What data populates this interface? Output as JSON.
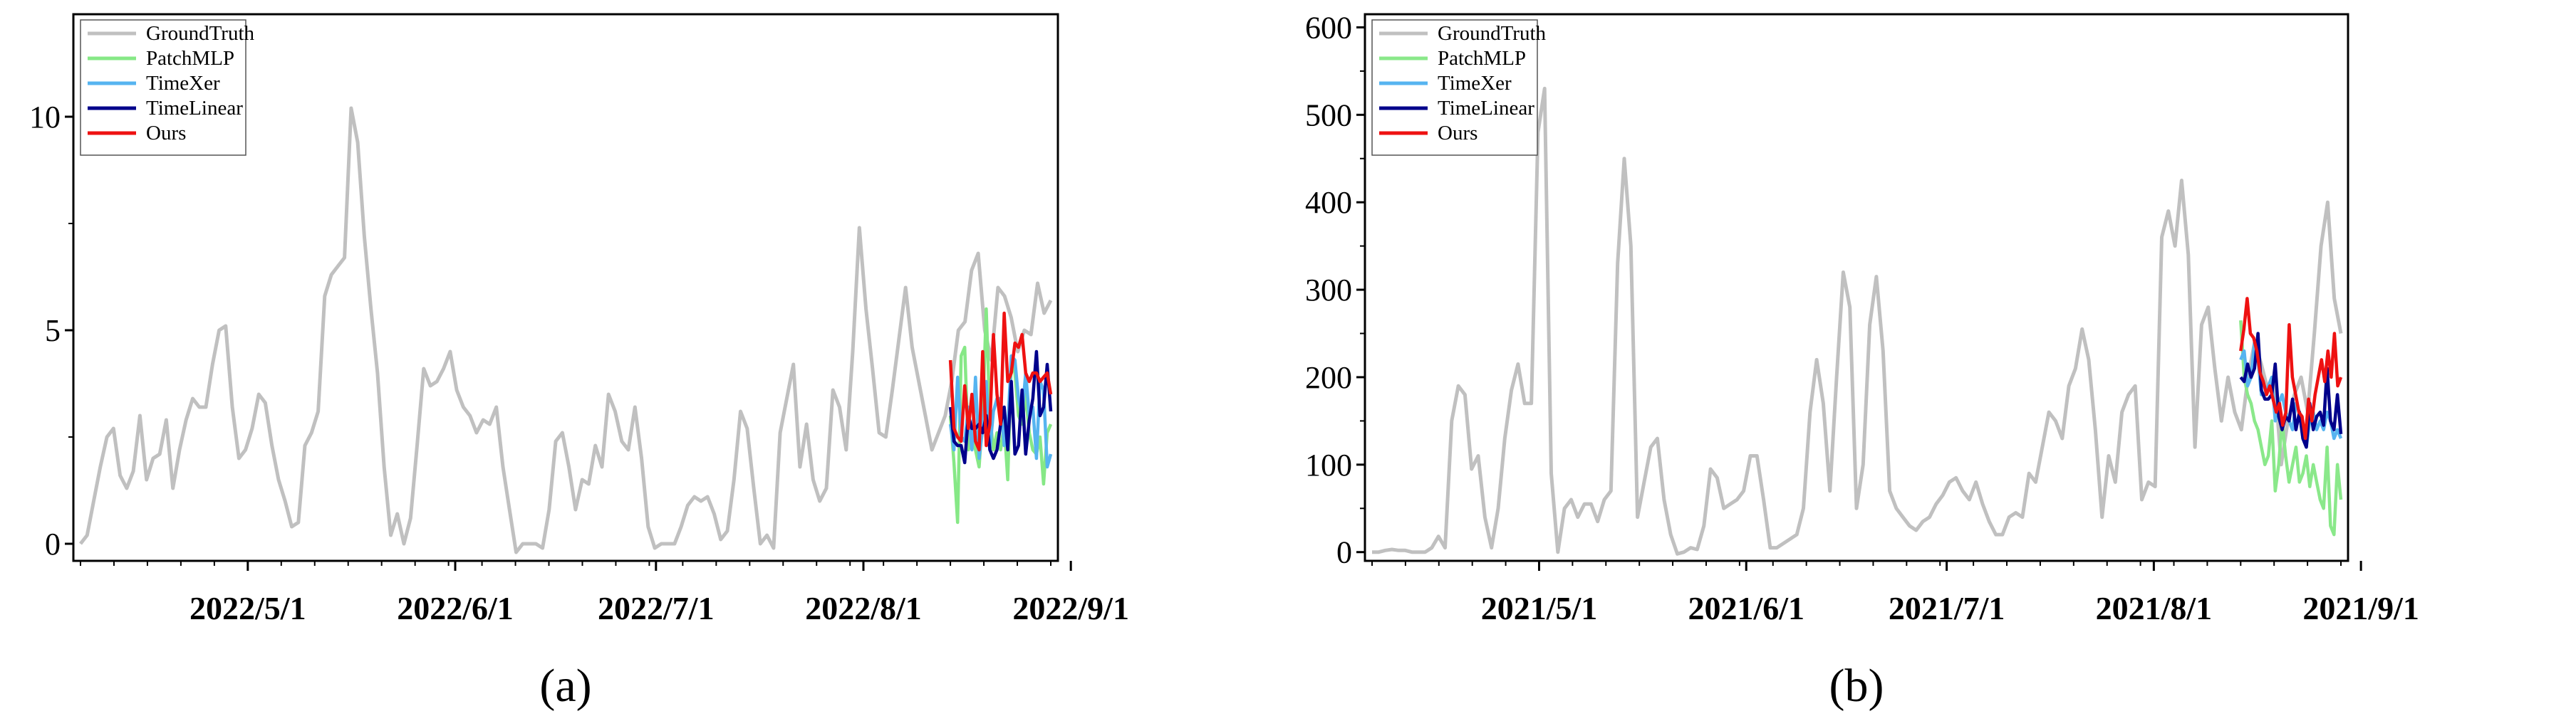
{
  "chart_data": [
    {
      "panel": "(a)",
      "type": "line",
      "ylim": [
        -0.4,
        12.4
      ],
      "yticks": [
        0,
        5,
        10
      ],
      "xticks": [
        "2022/5/1",
        "2022/6/1",
        "2022/7/1",
        "2022/8/1",
        "2022/9/1"
      ],
      "x_start": "2022/4/6",
      "forecast_start": "2022/8/14",
      "legend": {
        "position": "top-left",
        "entries": [
          "GroundTruth",
          "PatchMLP",
          "TimeXer",
          "TimeLinear",
          "Ours"
        ]
      },
      "series": [
        {
          "name": "GroundTruth",
          "color": "#c0c0c0",
          "values": [
            0,
            0.2,
            1.0,
            1.8,
            2.5,
            2.7,
            1.6,
            1.3,
            1.7,
            3.0,
            1.5,
            2.0,
            2.1,
            2.9,
            1.3,
            2.2,
            2.9,
            3.4,
            3.2,
            3.2,
            4.2,
            5.0,
            5.1,
            3.2,
            2.0,
            2.2,
            2.7,
            3.5,
            3.3,
            2.3,
            1.5,
            1.0,
            0.4,
            0.5,
            2.3,
            2.6,
            3.1,
            5.8,
            6.3,
            6.5,
            6.7,
            10.2,
            9.4,
            7.2,
            5.5,
            4.0,
            1.8,
            0.2,
            0.7,
            0.0,
            0.6,
            2.3,
            4.1,
            3.7,
            3.8,
            4.1,
            4.5,
            3.6,
            3.2,
            3.0,
            2.6,
            2.9,
            2.8,
            3.2,
            1.8,
            0.8,
            -0.2,
            0.0,
            0.0,
            0.0,
            -0.1,
            0.8,
            2.4,
            2.6,
            1.8,
            0.8,
            1.5,
            1.4,
            2.3,
            1.8,
            3.5,
            3.1,
            2.4,
            2.2,
            3.2,
            2.0,
            0.4,
            -0.1,
            0.0,
            0.0,
            0.0,
            0.4,
            0.9,
            1.1,
            1.0,
            1.1,
            0.7,
            0.1,
            0.3,
            1.5,
            3.1,
            2.7,
            1.3,
            0.0,
            0.2,
            -0.1,
            2.6,
            3.4,
            4.2,
            1.8,
            2.8,
            1.5,
            1.0,
            1.3,
            3.6,
            3.2,
            2.2,
            4.5,
            7.4,
            5.5,
            4.1,
            2.6,
            2.5,
            3.6,
            4.8,
            6.0,
            4.6,
            3.8,
            3.0,
            2.2,
            2.6,
            3.0,
            3.8,
            5.0,
            5.2,
            6.4,
            6.8,
            5.0,
            4.3,
            6.0,
            5.8,
            5.3,
            4.5,
            5.0,
            4.9,
            6.1,
            5.4,
            5.7
          ]
        },
        {
          "name": "PatchMLP",
          "color": "#86e886",
          "values": [
            3.0,
            1.9,
            0.5,
            4.4,
            4.6,
            2.2,
            2.5,
            2.2,
            1.8,
            3.0,
            5.5,
            3.0,
            2.2,
            2.6,
            2.2,
            2.8,
            1.5,
            4.3,
            4.0,
            3.0,
            2.8,
            3.5,
            2.6,
            2.2,
            2.1,
            2.5,
            1.4,
            2.6,
            2.8
          ]
        },
        {
          "name": "TimeXer",
          "color": "#56b4f0",
          "values": [
            2.8,
            2.2,
            3.9,
            2.5,
            2.4,
            3.2,
            2.2,
            3.9,
            2.0,
            2.7,
            3.8,
            2.2,
            3.1,
            3.4,
            3.4,
            2.3,
            2.7,
            4.4,
            4.3,
            3.4,
            3.0,
            4.0,
            3.0,
            3.2,
            2.0,
            3.8,
            3.6,
            1.8,
            2.1
          ]
        },
        {
          "name": "TimeLinear",
          "color": "#00008b",
          "values": [
            3.2,
            2.4,
            2.3,
            2.3,
            1.9,
            3.0,
            2.7,
            2.7,
            2.8,
            2.6,
            3.0,
            2.2,
            2.0,
            2.2,
            2.8,
            3.2,
            2.2,
            3.8,
            2.1,
            2.3,
            3.6,
            2.1,
            2.9,
            3.4,
            4.5,
            3.0,
            3.2,
            4.2,
            3.1
          ]
        },
        {
          "name": "Ours",
          "color": "#ee1111",
          "values": [
            4.3,
            2.7,
            2.5,
            2.4,
            3.7,
            2.7,
            3.5,
            2.4,
            2.2,
            4.5,
            2.3,
            2.8,
            4.9,
            3.5,
            2.8,
            5.4,
            3.8,
            4.0,
            4.7,
            4.6,
            4.9,
            4.0,
            3.8,
            4.0,
            4.0,
            3.8,
            3.9,
            4.0,
            3.5
          ]
        }
      ]
    },
    {
      "panel": "(b)",
      "type": "line",
      "ylim": [
        -10,
        615
      ],
      "yticks": [
        0,
        100,
        200,
        300,
        400,
        500,
        600
      ],
      "xticks": [
        "2021/5/1",
        "2021/6/1",
        "2021/7/1",
        "2021/8/1",
        "2021/9/1"
      ],
      "x_start": "2021/4/6",
      "forecast_start": "2021/8/14",
      "legend": {
        "position": "top-left",
        "entries": [
          "GroundTruth",
          "PatchMLP",
          "TimeXer",
          "TimeLinear",
          "Ours"
        ]
      },
      "series": [
        {
          "name": "GroundTruth",
          "color": "#c0c0c0",
          "values": [
            0,
            0,
            2,
            3,
            2,
            2,
            0,
            0,
            0,
            5,
            18,
            5,
            150,
            190,
            180,
            95,
            110,
            40,
            5,
            50,
            130,
            185,
            215,
            170,
            170,
            480,
            530,
            90,
            0,
            50,
            60,
            40,
            55,
            55,
            35,
            60,
            70,
            330,
            450,
            350,
            40,
            80,
            120,
            130,
            60,
            20,
            -2,
            0,
            5,
            3,
            30,
            95,
            85,
            50,
            55,
            60,
            70,
            110,
            110,
            60,
            5,
            5,
            10,
            15,
            20,
            50,
            160,
            220,
            170,
            70,
            200,
            320,
            280,
            50,
            100,
            260,
            315,
            230,
            70,
            50,
            40,
            30,
            25,
            35,
            40,
            55,
            65,
            80,
            85,
            70,
            60,
            80,
            55,
            35,
            20,
            20,
            40,
            45,
            40,
            90,
            80,
            120,
            160,
            150,
            130,
            190,
            210,
            255,
            220,
            140,
            40,
            110,
            80,
            160,
            180,
            190,
            60,
            80,
            75,
            360,
            390,
            350,
            425,
            340,
            120,
            260,
            280,
            210,
            150,
            200,
            160,
            140,
            200,
            240,
            215,
            185,
            200,
            100,
            150,
            180,
            200,
            160,
            250,
            350,
            400,
            290,
            250
          ]
        },
        {
          "name": "PatchMLP",
          "color": "#8ae88a",
          "values": [
            265,
            200,
            180,
            170,
            150,
            140,
            120,
            100,
            110,
            150,
            70,
            100,
            150,
            110,
            80,
            100,
            120,
            80,
            90,
            110,
            75,
            100,
            80,
            60,
            50,
            120,
            30,
            20,
            100,
            60
          ]
        },
        {
          "name": "TimeXer",
          "color": "#56b4f0",
          "values": [
            220,
            230,
            190,
            200,
            240,
            220,
            180,
            180,
            190,
            200,
            150,
            170,
            180,
            160,
            150,
            140,
            170,
            160,
            130,
            120,
            150,
            160,
            140,
            150,
            140,
            160,
            150,
            130,
            140,
            130
          ]
        },
        {
          "name": "TimeLinear",
          "color": "#00008b",
          "values": [
            200,
            195,
            215,
            200,
            210,
            250,
            185,
            175,
            175,
            180,
            215,
            155,
            140,
            155,
            150,
            175,
            140,
            160,
            130,
            120,
            170,
            140,
            155,
            160,
            145,
            210,
            150,
            140,
            180,
            135
          ]
        },
        {
          "name": "Ours",
          "color": "#ee1111",
          "values": [
            230,
            255,
            290,
            250,
            245,
            230,
            205,
            195,
            180,
            190,
            175,
            160,
            170,
            145,
            160,
            260,
            200,
            180,
            160,
            155,
            130,
            175,
            150,
            180,
            200,
            220,
            195,
            230,
            200,
            250,
            190,
            200
          ]
        }
      ]
    }
  ],
  "captions": [
    "(a)",
    "(b)"
  ]
}
